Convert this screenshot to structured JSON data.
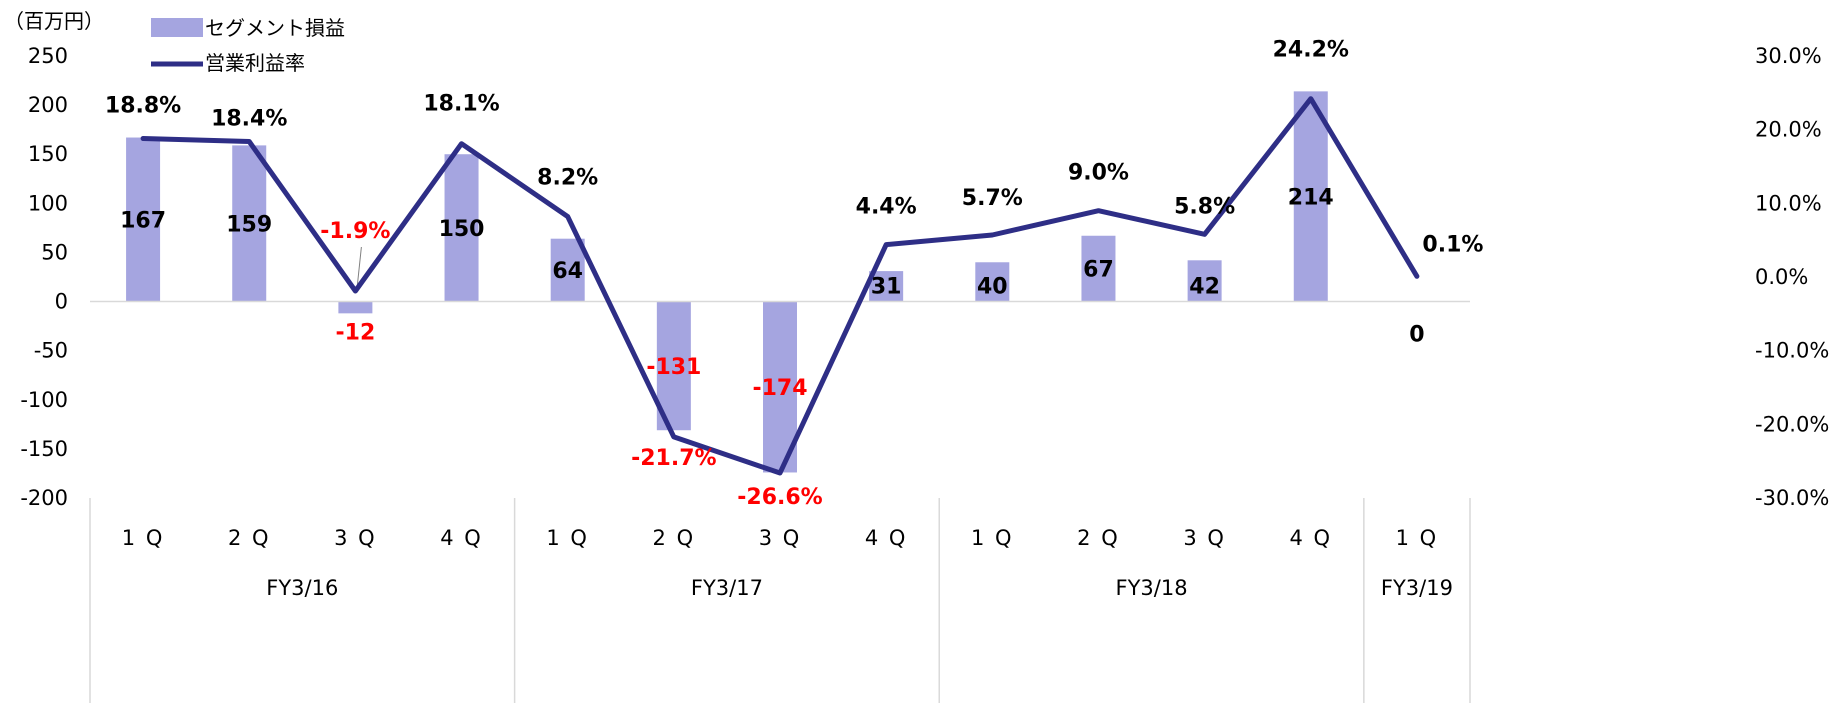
{
  "unit_label": "（百万円）",
  "colors": {
    "bar": "#a5a5e0",
    "line": "#2e2e86",
    "negative_label": "#ff0000",
    "label": "#000000"
  },
  "legend": {
    "bar_name": "セグメント損益",
    "line_name": "営業利益率"
  },
  "chart_data": {
    "type": "bar",
    "combo": "bar + line (secondary axis)",
    "categories": [
      "1 Q",
      "2 Q",
      "3 Q",
      "4 Q",
      "1 Q",
      "2 Q",
      "3 Q",
      "4 Q",
      "1 Q",
      "2 Q",
      "3 Q",
      "4 Q",
      "1 Q"
    ],
    "groups": [
      {
        "label": "FY3/16",
        "count": 4
      },
      {
        "label": "FY3/17",
        "count": 4
      },
      {
        "label": "FY3/18",
        "count": 4
      },
      {
        "label": "FY3/19",
        "count": 1
      }
    ],
    "series": [
      {
        "name": "セグメント損益",
        "type": "bar",
        "axis": "left",
        "values": [
          167,
          159,
          -12,
          150,
          64,
          -131,
          -174,
          31,
          40,
          67,
          42,
          214,
          0
        ],
        "labels": [
          "167",
          "159",
          "-12",
          "150",
          "64",
          "-131",
          "-174",
          "31",
          "40",
          "67",
          "42",
          "214",
          "0"
        ]
      },
      {
        "name": "営業利益率",
        "type": "line",
        "axis": "right",
        "values": [
          18.8,
          18.4,
          -1.9,
          18.1,
          8.2,
          -21.7,
          -26.6,
          4.4,
          5.7,
          9.0,
          5.8,
          24.2,
          0.1
        ],
        "labels": [
          "18.8%",
          "18.4%",
          "-1.9%",
          "18.1%",
          "8.2%",
          "-21.7%",
          "-26.6%",
          "4.4%",
          "5.7%",
          "9.0%",
          "5.8%",
          "24.2%",
          "0.1%"
        ]
      }
    ],
    "y_left": {
      "min": -200,
      "max": 250,
      "step": 50,
      "ticks": [
        "250",
        "200",
        "150",
        "100",
        "50",
        "0",
        "-50",
        "-100",
        "-150",
        "-200"
      ]
    },
    "y_right": {
      "min": -30,
      "max": 30,
      "step": 10,
      "ticks": [
        "30.0%",
        "20.0%",
        "10.0%",
        "0.0%",
        "-10.0%",
        "-20.0%",
        "-30.0%"
      ]
    },
    "grid": false,
    "legend_position": "top-left"
  }
}
